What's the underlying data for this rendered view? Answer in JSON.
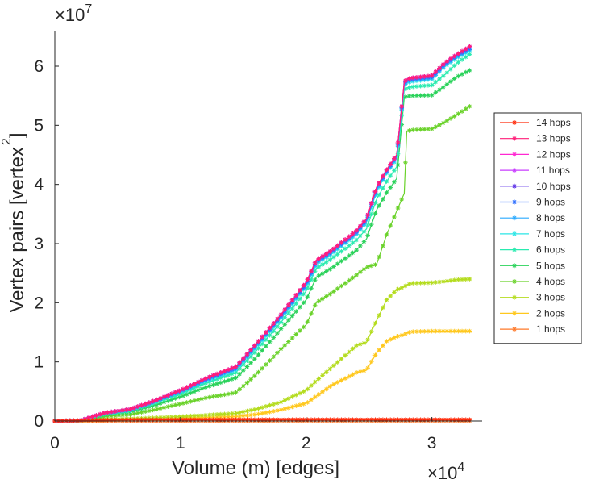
{
  "chart_data": {
    "type": "line",
    "title": "",
    "xlabel": "Volume (m) [edges]",
    "ylabel": "Vertex pairs [vertex",
    "ylabel_superscript": "2",
    "ylabel_suffix": "]",
    "x_multiplier": {
      "base": "×10",
      "exponent": "4"
    },
    "y_multiplier": {
      "base": "×10",
      "exponent": "7"
    },
    "xlim": [
      0,
      34000
    ],
    "ylim": [
      0,
      66000000
    ],
    "xticks": [
      {
        "value": 0,
        "label": "0"
      },
      {
        "value": 10000,
        "label": "1"
      },
      {
        "value": 20000,
        "label": "2"
      },
      {
        "value": 30000,
        "label": "3"
      }
    ],
    "yticks": [
      {
        "value": 0,
        "label": "0"
      },
      {
        "value": 10000000,
        "label": "1"
      },
      {
        "value": 20000000,
        "label": "2"
      },
      {
        "value": 30000000,
        "label": "3"
      },
      {
        "value": 40000000,
        "label": "4"
      },
      {
        "value": 50000000,
        "label": "5"
      },
      {
        "value": 60000000,
        "label": "6"
      }
    ],
    "legend_position": "right",
    "x": [
      0,
      2000,
      4000,
      6000,
      8000,
      10000,
      12000,
      14400,
      16000,
      18000,
      20000,
      20800,
      22000,
      24000,
      24800,
      25600,
      26400,
      27200,
      27800,
      28000,
      28400,
      30000,
      31000,
      32000,
      33000
    ],
    "series": [
      {
        "name": "14 hops",
        "color": "#ff2a0a",
        "values": [
          0,
          80000,
          170000,
          200000,
          210000,
          220000,
          230000,
          240000,
          240000,
          240000,
          240000,
          240000,
          240000,
          240000,
          240000,
          240000,
          240000,
          240000,
          240000,
          240000,
          240000,
          240000,
          240000,
          240000,
          240000
        ]
      },
      {
        "name": "13 hops",
        "color": "#ff1e78",
        "values": [
          0,
          100000,
          1400000,
          2000000,
          3500000,
          5200000,
          7200000,
          9200000,
          13000000,
          18000000,
          23500000,
          27200000,
          28800000,
          32200000,
          34200000,
          39500000,
          42500000,
          45000000,
          57300000,
          57800000,
          58000000,
          58400000,
          60500000,
          62000000,
          63300000
        ]
      },
      {
        "name": "12 hops",
        "color": "#ff28d2",
        "values": [
          0,
          100000,
          1400000,
          2000000,
          3500000,
          5200000,
          7200000,
          9200000,
          13000000,
          18000000,
          23500000,
          27200000,
          28800000,
          32200000,
          34200000,
          39500000,
          42500000,
          45000000,
          57300000,
          57800000,
          58000000,
          58400000,
          60500000,
          62000000,
          63300000
        ]
      },
      {
        "name": "11 hops",
        "color": "#c83cff",
        "values": [
          0,
          100000,
          1400000,
          2000000,
          3500000,
          5200000,
          7200000,
          9200000,
          13000000,
          18000000,
          23500000,
          27200000,
          28800000,
          32200000,
          34200000,
          39500000,
          42500000,
          45000000,
          57300000,
          57800000,
          58000000,
          58400000,
          60500000,
          62000000,
          63300000
        ]
      },
      {
        "name": "10 hops",
        "color": "#5a2ee6",
        "values": [
          0,
          100000,
          1400000,
          2000000,
          3500000,
          5200000,
          7200000,
          9200000,
          13000000,
          18000000,
          23500000,
          27200000,
          28800000,
          32200000,
          34200000,
          39500000,
          42500000,
          45000000,
          57300000,
          57800000,
          58000000,
          58400000,
          60500000,
          62000000,
          63300000
        ]
      },
      {
        "name": "9 hops",
        "color": "#2a6cff",
        "values": [
          0,
          100000,
          1380000,
          1950000,
          3400000,
          5100000,
          7050000,
          9000000,
          12800000,
          17800000,
          23200000,
          27000000,
          28600000,
          32000000,
          34000000,
          39300000,
          42300000,
          44800000,
          57100000,
          57600000,
          57800000,
          58200000,
          60300000,
          61800000,
          63000000
        ]
      },
      {
        "name": "8 hops",
        "color": "#2aaaff",
        "values": [
          0,
          95000,
          1350000,
          1900000,
          3350000,
          5000000,
          6900000,
          8800000,
          12600000,
          17600000,
          23000000,
          26800000,
          28400000,
          31800000,
          33800000,
          39000000,
          42100000,
          44600000,
          56900000,
          57400000,
          57600000,
          58000000,
          60100000,
          61600000,
          62800000
        ]
      },
      {
        "name": "7 hops",
        "color": "#2ae6e6",
        "values": [
          0,
          90000,
          1300000,
          1850000,
          3300000,
          4900000,
          6800000,
          8700000,
          12400000,
          17400000,
          22800000,
          26600000,
          28200000,
          31600000,
          33600000,
          38800000,
          41900000,
          44400000,
          56700000,
          57200000,
          57400000,
          57800000,
          59900000,
          61400000,
          62600000
        ]
      },
      {
        "name": "6 hops",
        "color": "#2aebb0",
        "values": [
          0,
          85000,
          1200000,
          1750000,
          3100000,
          4600000,
          6400000,
          8200000,
          11800000,
          16700000,
          22000000,
          25800000,
          27400000,
          30600000,
          32500000,
          37500000,
          40500000,
          43000000,
          56000000,
          56300000,
          56500000,
          56800000,
          58500000,
          60500000,
          62000000
        ]
      },
      {
        "name": "5 hops",
        "color": "#2ad25a",
        "values": [
          0,
          80000,
          1100000,
          1550000,
          2700000,
          4100000,
          5700000,
          7300000,
          10700000,
          15600000,
          20500000,
          24300000,
          25800000,
          28900000,
          30800000,
          35700000,
          38600000,
          41000000,
          54700000,
          54900000,
          55000000,
          55100000,
          56600000,
          58200000,
          59300000
        ]
      },
      {
        "name": "4 hops",
        "color": "#6ad22a",
        "values": [
          0,
          60000,
          800000,
          1100000,
          1950000,
          2900000,
          3900000,
          4800000,
          7800000,
          12200000,
          16300000,
          20000000,
          21600000,
          24700000,
          26000000,
          26500000,
          31500000,
          35500000,
          38500000,
          49000000,
          49200000,
          49400000,
          50500000,
          51800000,
          53200000
        ]
      },
      {
        "name": "3 hops",
        "color": "#b4dc1e",
        "values": [
          0,
          40000,
          280000,
          380000,
          560000,
          760000,
          1000000,
          1300000,
          2000000,
          3200000,
          5200000,
          6800000,
          9000000,
          12800000,
          13300000,
          17000000,
          20500000,
          22200000,
          22700000,
          23000000,
          23300000,
          23400000,
          23600000,
          23900000,
          24000000
        ]
      },
      {
        "name": "2 hops",
        "color": "#ffc81e",
        "values": [
          0,
          30000,
          150000,
          220000,
          330000,
          460000,
          610000,
          760000,
          1100000,
          1900000,
          3000000,
          4200000,
          6000000,
          8200000,
          8600000,
          11500000,
          13500000,
          14300000,
          14600000,
          14900000,
          15100000,
          15200000,
          15200000,
          15200000,
          15200000
        ]
      },
      {
        "name": "1 hops",
        "color": "#ff7828",
        "values": [
          0,
          2000,
          4000,
          6000,
          8000,
          10000,
          12000,
          14400,
          16000,
          18000,
          20000,
          20800,
          22000,
          24000,
          24800,
          25600,
          26400,
          27200,
          27800,
          28000,
          28400,
          30000,
          31000,
          32000,
          33000
        ]
      }
    ]
  }
}
